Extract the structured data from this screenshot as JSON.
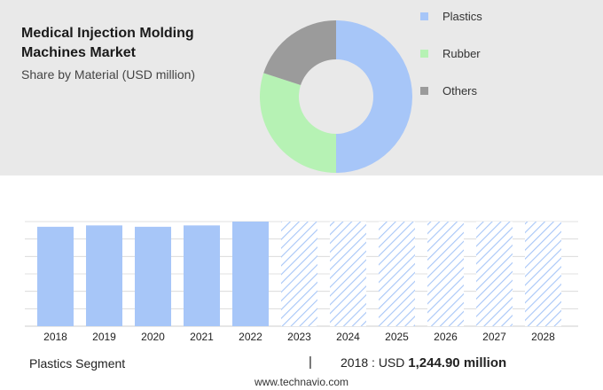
{
  "header": {
    "title": "Medical Injection Molding Machines Market",
    "subtitle": "Share by Material (USD million)"
  },
  "colors": {
    "panel_bg": "#e9e9e9",
    "bar_actual": "#a7c6f8",
    "bar_forecast_hatch": "#a7c6f8",
    "grid": "#d6d6d6"
  },
  "chart_data": [
    {
      "type": "pie",
      "subtype": "donut",
      "categories": [
        "Plastics",
        "Rubber",
        "Others"
      ],
      "values": [
        50,
        30,
        20
      ],
      "colors": [
        "#a7c6f8",
        "#b6f2b4",
        "#9b9b9b"
      ],
      "legend": "right"
    },
    {
      "type": "bar",
      "categories": [
        "2018",
        "2019",
        "2020",
        "2021",
        "2022",
        "2023",
        "2024",
        "2025",
        "2026",
        "2027",
        "2028"
      ],
      "series": [
        {
          "name": "Plastics",
          "values": [
            1244.9,
            1262,
            1245,
            1262,
            1310,
            1310,
            1310,
            1310,
            1310,
            1310,
            1310
          ]
        }
      ],
      "forecast_from": "2023",
      "ylim": [
        0,
        1310
      ],
      "grid": true,
      "ylabel": "",
      "xlabel": ""
    }
  ],
  "footer": {
    "segment_label": "Plastics Segment",
    "separator": "|",
    "value_prefix": "2018 : USD",
    "value": "1,244.90 million",
    "site": "www.technavio.com"
  }
}
